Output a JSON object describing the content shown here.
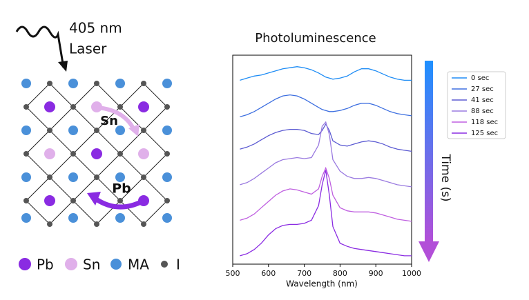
{
  "chart_data": {
    "type": "line",
    "title": "Photoluminescence",
    "x_label": "Wavelength (nm)",
    "x": [
      520,
      540,
      560,
      580,
      600,
      620,
      640,
      660,
      680,
      700,
      720,
      740,
      750,
      760,
      770,
      780,
      800,
      820,
      840,
      860,
      880,
      900,
      920,
      940,
      960,
      980,
      1000
    ],
    "xlim": [
      500,
      1000
    ],
    "xticks": [
      500,
      600,
      700,
      800,
      900,
      1000
    ],
    "ylim": [
      0,
      100
    ],
    "legend": "upper right",
    "annotation": "Time (s)",
    "series": [
      {
        "name": "0 sec",
        "color": "#1e8cf5",
        "values": [
          88,
          89,
          90,
          90.5,
          91.5,
          92.5,
          93.5,
          94,
          94.5,
          94,
          93,
          91.5,
          90.5,
          89.5,
          89,
          88.5,
          89,
          90,
          92,
          93.5,
          93.5,
          92.5,
          91,
          89.5,
          88.5,
          88,
          88
        ]
      },
      {
        "name": "27 sec",
        "color": "#3d6fe0",
        "values": [
          70.5,
          71.5,
          73,
          75,
          77,
          79,
          80.5,
          81,
          80.5,
          79,
          77,
          75,
          74,
          73.5,
          73,
          73,
          73.5,
          74.5,
          76,
          77,
          77,
          76,
          74.5,
          73,
          72,
          71.5,
          71
        ]
      },
      {
        "name": "41 sec",
        "color": "#5b5ad2",
        "values": [
          55,
          56,
          57.5,
          59.5,
          61.5,
          63,
          64,
          64.5,
          64.5,
          64,
          62.5,
          62,
          64,
          67,
          64,
          59,
          57,
          56.5,
          57.5,
          58.5,
          59,
          58.5,
          57.5,
          56,
          55,
          54.5,
          54
        ]
      },
      {
        "name": "88 sec",
        "color": "#9a7ae0",
        "values": [
          38,
          39,
          41,
          43.5,
          46,
          48.5,
          50,
          50.5,
          51,
          50.5,
          51,
          57,
          66,
          68,
          62,
          50,
          44.5,
          42,
          41,
          41,
          41.5,
          41,
          40,
          39,
          38,
          37.5,
          37
        ]
      },
      {
        "name": "118 sec",
        "color": "#bf5fe0",
        "values": [
          21,
          22,
          24,
          27,
          30,
          33,
          35,
          36,
          35.5,
          34.5,
          33.5,
          36,
          42,
          46,
          41,
          33,
          27,
          25.5,
          25,
          25,
          25,
          24.5,
          23.5,
          22.5,
          21.5,
          21,
          20.5
        ]
      },
      {
        "name": "125 sec",
        "color": "#8a2be2",
        "values": [
          4,
          5,
          7,
          10,
          14,
          17,
          18.5,
          19,
          19,
          19.5,
          21,
          28,
          38,
          45,
          33,
          18,
          10,
          8.5,
          7.5,
          7,
          6.5,
          6,
          5.5,
          5,
          4.5,
          4,
          4
        ]
      }
    ]
  },
  "diagram": {
    "laser_line1": "405 nm",
    "laser_line2": "Laser",
    "sn_label": "Sn",
    "pb_label": "Pb",
    "key": [
      "Pb",
      "Sn",
      "MA",
      "I"
    ]
  }
}
